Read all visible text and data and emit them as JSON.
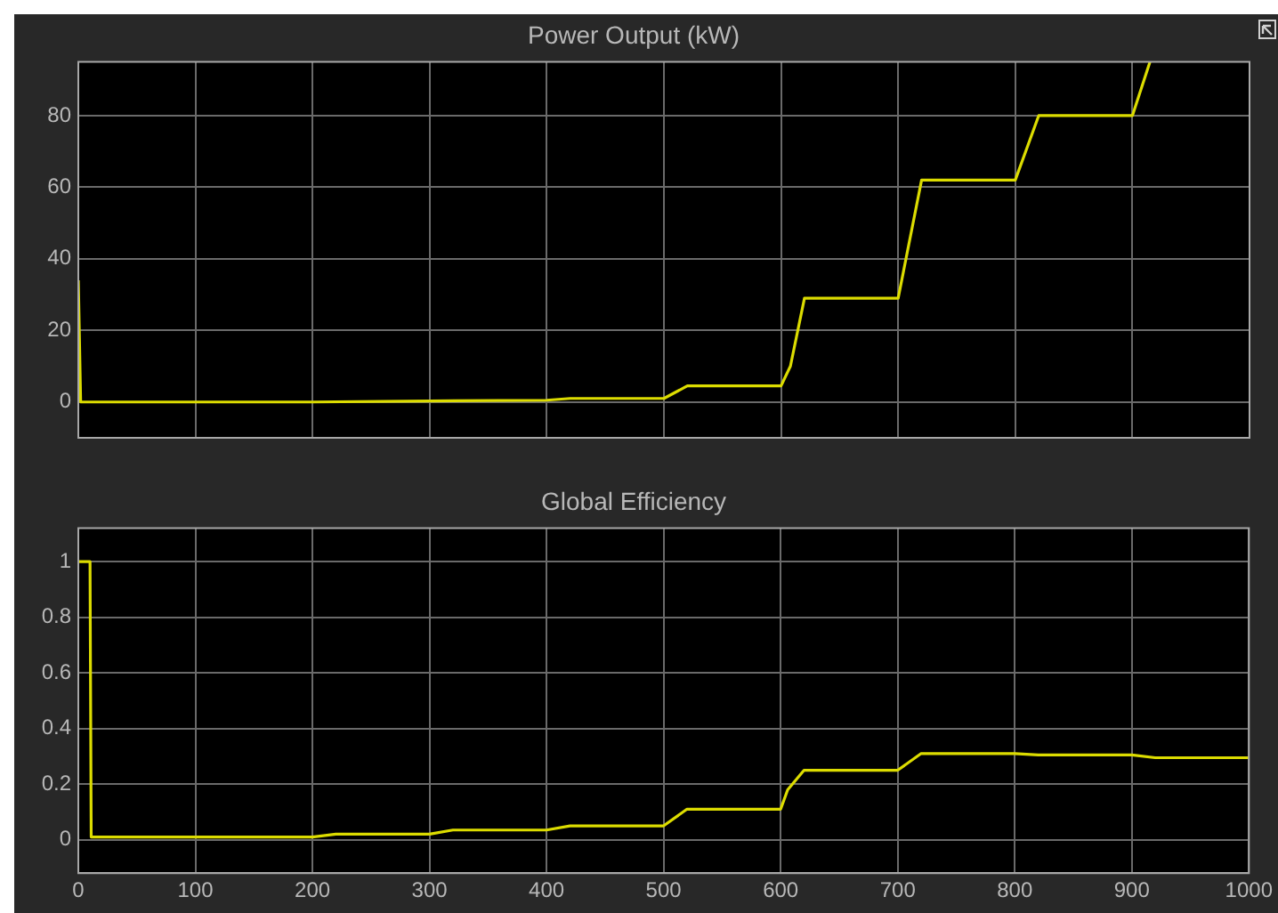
{
  "chart_data": [
    {
      "type": "line",
      "title": "Power Output (kW)",
      "x": [
        0,
        2,
        200,
        300,
        400,
        420,
        500,
        520,
        600,
        608,
        620,
        700,
        720,
        800,
        820,
        900,
        915
      ],
      "values": [
        34,
        0,
        0,
        0.3,
        0.5,
        1,
        1,
        4.5,
        4.5,
        10,
        29,
        29,
        62,
        62,
        80,
        80,
        95
      ],
      "color": "#dcdc00",
      "xlim": [
        0,
        1000
      ],
      "xticks": [
        0,
        100,
        200,
        300,
        400,
        500,
        600,
        700,
        800,
        900,
        1000
      ],
      "ylim": [
        -10,
        95
      ],
      "yticks": [
        0,
        20,
        40,
        60,
        80
      ],
      "grid": true,
      "tick_labels": "y"
    },
    {
      "type": "line",
      "title": "Global Efficiency",
      "x": [
        0,
        10,
        11,
        200,
        220,
        300,
        320,
        400,
        420,
        500,
        520,
        600,
        606,
        620,
        700,
        720,
        800,
        820,
        900,
        920,
        1000
      ],
      "values": [
        1,
        1,
        0.01,
        0.01,
        0.02,
        0.02,
        0.035,
        0.035,
        0.05,
        0.05,
        0.11,
        0.11,
        0.18,
        0.25,
        0.25,
        0.31,
        0.31,
        0.305,
        0.305,
        0.295,
        0.295
      ],
      "color": "#dcdc00",
      "xlim": [
        0,
        1000
      ],
      "xticks": [
        0,
        100,
        200,
        300,
        400,
        500,
        600,
        700,
        800,
        900,
        1000
      ],
      "ylim": [
        -0.12,
        1.12
      ],
      "yticks": [
        0,
        0.2,
        0.4,
        0.6,
        0.8,
        1
      ],
      "grid": true
    }
  ]
}
